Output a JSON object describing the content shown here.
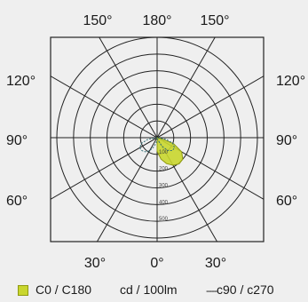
{
  "chart_data": {
    "type": "polar",
    "angle_labels_top": [
      "150°",
      "180°",
      "150°"
    ],
    "angle_labels_left": [
      "120°",
      "90°",
      "60°"
    ],
    "angle_labels_right": [
      "120°",
      "90°",
      "60°"
    ],
    "angle_labels_bottom": [
      "30°",
      "0°",
      "30°"
    ],
    "radial_ticks": [
      "100",
      "200",
      "300",
      "400",
      "500"
    ],
    "radial_max": 600,
    "unit": "cd / 100lm",
    "series": [
      {
        "name": "C0 / C180",
        "style": "filled",
        "color": "#c9d62e",
        "points": [
          {
            "angle": 0,
            "value": 80
          },
          {
            "angle": 10,
            "value": 130
          },
          {
            "angle": 20,
            "value": 165
          },
          {
            "angle": 30,
            "value": 190
          },
          {
            "angle": 40,
            "value": 205
          },
          {
            "angle": 50,
            "value": 200
          },
          {
            "angle": 60,
            "value": 170
          },
          {
            "angle": 70,
            "value": 105
          },
          {
            "angle": 80,
            "value": 20
          },
          {
            "angle": 90,
            "value": 0
          }
        ]
      },
      {
        "name": "c90 / c270",
        "style": "dashed",
        "color": "#2f6f77",
        "points": [
          {
            "angle": -90,
            "value": 0
          },
          {
            "angle": -80,
            "value": 55
          },
          {
            "angle": -70,
            "value": 100
          },
          {
            "angle": -60,
            "value": 120
          },
          {
            "angle": -50,
            "value": 120
          },
          {
            "angle": -40,
            "value": 110
          },
          {
            "angle": -30,
            "value": 90
          },
          {
            "angle": -20,
            "value": 60
          },
          {
            "angle": -10,
            "value": 30
          },
          {
            "angle": 0,
            "value": 15
          },
          {
            "angle": 10,
            "value": 10
          },
          {
            "angle": 20,
            "value": 20
          },
          {
            "angle": 30,
            "value": 60
          },
          {
            "angle": 40,
            "value": 100
          },
          {
            "angle": 50,
            "value": 120
          },
          {
            "angle": 60,
            "value": 120
          },
          {
            "angle": 70,
            "value": 100
          },
          {
            "angle": 80,
            "value": 55
          },
          {
            "angle": 90,
            "value": 0
          }
        ]
      }
    ]
  },
  "legend": {
    "series1_label": "C0 / C180",
    "unit_label": "cd / 100lm",
    "series2_dash": "----",
    "series2_label": "c90 / c270",
    "series1_color": "#c9d62e",
    "series2_color": "#2f6f77"
  }
}
